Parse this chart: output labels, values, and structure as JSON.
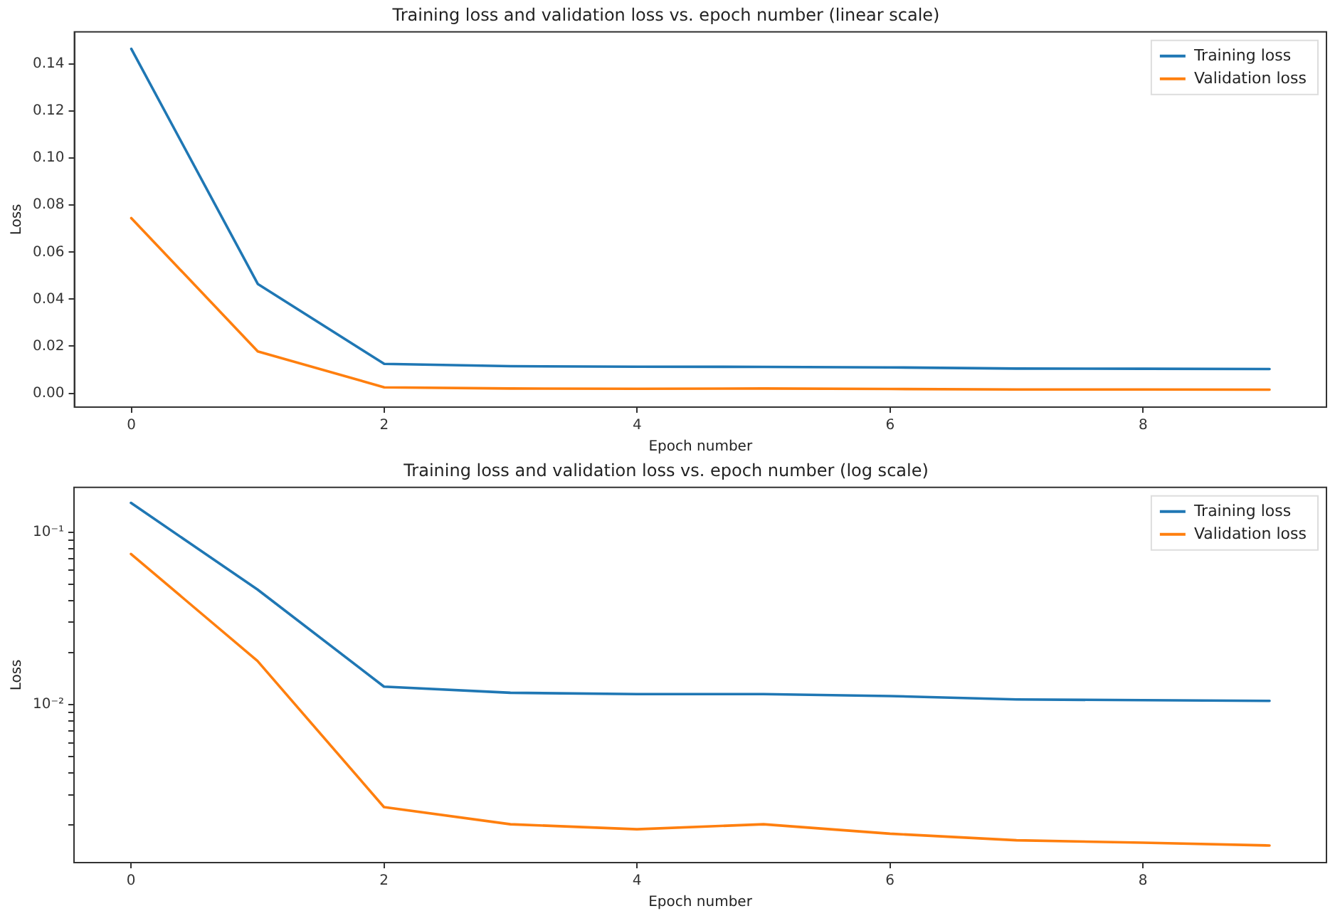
{
  "chart_data": [
    {
      "type": "line",
      "title": "Training loss and validation loss vs. epoch number (linear scale)",
      "xlabel": "Epoch number",
      "ylabel": "Loss",
      "x": [
        0,
        1,
        2,
        3,
        4,
        5,
        6,
        7,
        8,
        9
      ],
      "series": [
        {
          "name": "Training loss",
          "color": "#1f77b4",
          "values": [
            0.1465,
            0.0465,
            0.0125,
            0.0115,
            0.0113,
            0.0112,
            0.011,
            0.0105,
            0.0104,
            0.0103
          ]
        },
        {
          "name": "Validation loss",
          "color": "#ff7f0e",
          "values": [
            0.0745,
            0.0178,
            0.0025,
            0.002,
            0.0019,
            0.002,
            0.0018,
            0.0016,
            0.0016,
            0.0015
          ]
        }
      ],
      "xlim": [
        -0.45,
        9.45
      ],
      "xticks": [
        0,
        2,
        4,
        6,
        8
      ],
      "ylim": [
        -0.0059,
        0.1537
      ],
      "yticks": [
        {
          "value": 0,
          "label": "0.00"
        },
        {
          "value": 0.02,
          "label": "0.02"
        },
        {
          "value": 0.04,
          "label": "0.04"
        },
        {
          "value": 0.06,
          "label": "0.06"
        },
        {
          "value": 0.08,
          "label": "0.08"
        },
        {
          "value": 0.1,
          "label": "0.10"
        },
        {
          "value": 0.12,
          "label": "0.12"
        },
        {
          "value": 0.14,
          "label": "0.14"
        }
      ],
      "grid": false,
      "legend": "top right",
      "marker": "none",
      "line_style": "solid"
    },
    {
      "type": "line",
      "title": "Training loss and validation loss vs. epoch number (log scale)",
      "xlabel": "Epoch number",
      "ylabel": "Loss",
      "x": [
        0,
        1,
        2,
        3,
        4,
        5,
        6,
        7,
        8,
        9
      ],
      "series": [
        {
          "name": "Training loss",
          "color": "#1f77b4",
          "values": [
            0.148,
            0.0465,
            0.0127,
            0.0117,
            0.0115,
            0.0115,
            0.0112,
            0.0107,
            0.0106,
            0.0105
          ]
        },
        {
          "name": "Validation loss",
          "color": "#ff7f0e",
          "values": [
            0.0748,
            0.0179,
            0.00254,
            0.00202,
            0.00189,
            0.00202,
            0.00178,
            0.00163,
            0.00158,
            0.00152
          ]
        }
      ],
      "xlim": [
        -0.45,
        9.45
      ],
      "xticks": [
        0,
        2,
        4,
        6,
        8
      ],
      "ylim": [
        0.00121,
        0.182
      ],
      "log": "y",
      "yticks": [
        {
          "value": 0.002,
          "label": null
        },
        {
          "value": 0.003,
          "label": null
        },
        {
          "value": 0.004,
          "label": null
        },
        {
          "value": 0.005,
          "label": null
        },
        {
          "value": 0.006,
          "label": null
        },
        {
          "value": 0.007,
          "label": null
        },
        {
          "value": 0.008,
          "label": null
        },
        {
          "value": 0.009,
          "label": null
        },
        {
          "value": 0.01,
          "label": "10⁻²"
        },
        {
          "value": 0.02,
          "label": null
        },
        {
          "value": 0.03,
          "label": null
        },
        {
          "value": 0.04,
          "label": null
        },
        {
          "value": 0.05,
          "label": null
        },
        {
          "value": 0.06,
          "label": null
        },
        {
          "value": 0.07,
          "label": null
        },
        {
          "value": 0.08,
          "label": null
        },
        {
          "value": 0.09,
          "label": null
        },
        {
          "value": 0.1,
          "label": "10⁻¹"
        }
      ],
      "grid": false,
      "legend": "top right",
      "marker": "none",
      "line_style": "solid"
    }
  ]
}
